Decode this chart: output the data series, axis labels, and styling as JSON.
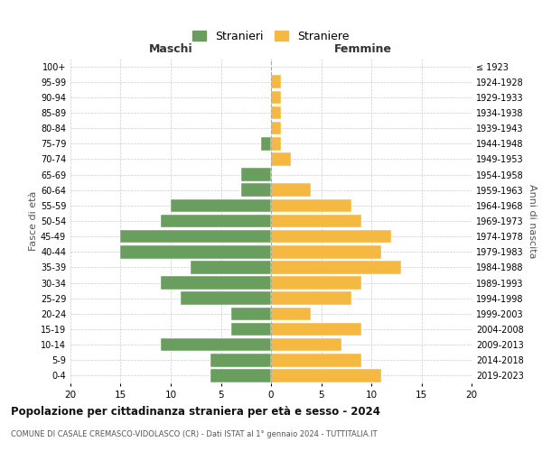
{
  "age_groups": [
    "100+",
    "95-99",
    "90-94",
    "85-89",
    "80-84",
    "75-79",
    "70-74",
    "65-69",
    "60-64",
    "55-59",
    "50-54",
    "45-49",
    "40-44",
    "35-39",
    "30-34",
    "25-29",
    "20-24",
    "15-19",
    "10-14",
    "5-9",
    "0-4"
  ],
  "birth_years": [
    "≤ 1923",
    "1924-1928",
    "1929-1933",
    "1934-1938",
    "1939-1943",
    "1944-1948",
    "1949-1953",
    "1954-1958",
    "1959-1963",
    "1964-1968",
    "1969-1973",
    "1974-1978",
    "1979-1983",
    "1984-1988",
    "1989-1993",
    "1994-1998",
    "1999-2003",
    "2004-2008",
    "2009-2013",
    "2014-2018",
    "2019-2023"
  ],
  "males": [
    0,
    0,
    0,
    0,
    0,
    1,
    0,
    3,
    3,
    10,
    11,
    15,
    15,
    8,
    11,
    9,
    4,
    4,
    11,
    6,
    6
  ],
  "females": [
    0,
    1,
    1,
    1,
    1,
    1,
    2,
    0,
    4,
    8,
    9,
    12,
    11,
    13,
    9,
    8,
    4,
    9,
    7,
    9,
    11
  ],
  "male_color": "#6a9e5e",
  "female_color": "#f5b942",
  "title": "Popolazione per cittadinanza straniera per età e sesso - 2024",
  "subtitle": "COMUNE DI CASALE CREMASCO-VIDOLASCO (CR) - Dati ISTAT al 1° gennaio 2024 - TUTTITALIA.IT",
  "xlabel_left": "Maschi",
  "xlabel_right": "Femmine",
  "ylabel_left": "Fasce di età",
  "ylabel_right": "Anni di nascita",
  "legend_male": "Stranieri",
  "legend_female": "Straniere",
  "xlim": 20,
  "background_color": "#ffffff",
  "grid_color": "#cccccc"
}
